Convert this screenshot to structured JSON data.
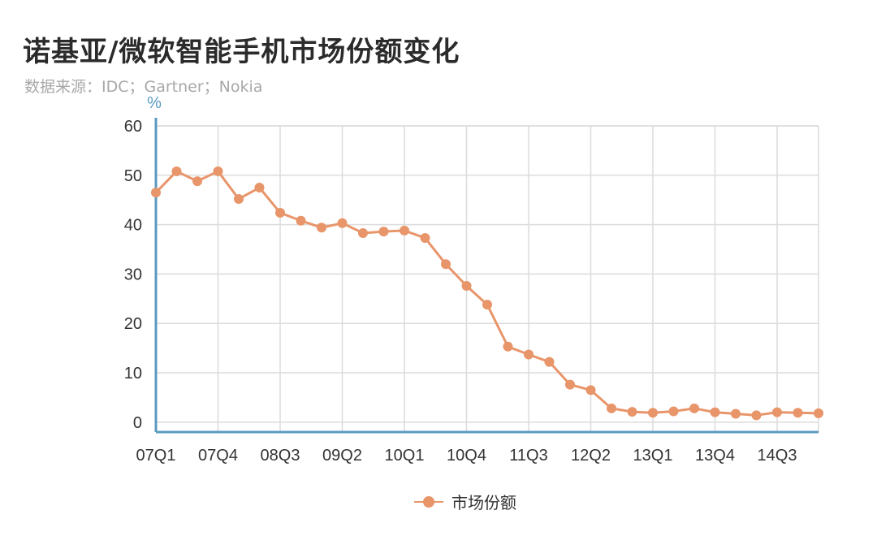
{
  "header": {
    "title": "诺基亚/微软智能手机市场份额变化",
    "subtitle": "数据来源：IDC；Gartner；Nokia"
  },
  "colors": {
    "series": "#e8956a",
    "axis": "#5b9ac1",
    "grid": "#dcdcdc"
  },
  "chart_data": {
    "type": "line",
    "title": "诺基亚/微软智能手机市场份额变化",
    "subtitle": "数据来源：IDC；Gartner；Nokia",
    "ylabel": "%",
    "xlabel": "",
    "ylim": [
      -2,
      60
    ],
    "yticks": [
      0,
      10,
      20,
      30,
      40,
      50,
      60
    ],
    "grid": true,
    "legend_position": "bottom",
    "x": [
      "07Q1",
      "07Q2",
      "07Q3",
      "07Q4",
      "08Q1",
      "08Q2",
      "08Q3",
      "08Q4",
      "09Q1",
      "09Q2",
      "09Q3",
      "09Q4",
      "10Q1",
      "10Q2",
      "10Q3",
      "10Q4",
      "11Q1",
      "11Q2",
      "11Q3",
      "11Q4",
      "12Q1",
      "12Q2",
      "12Q3",
      "12Q4",
      "13Q1",
      "13Q2",
      "13Q3",
      "13Q4",
      "14Q1",
      "14Q2",
      "14Q3",
      "14Q4",
      "15Q1"
    ],
    "xtick_labels": [
      "07Q1",
      "07Q4",
      "08Q3",
      "09Q2",
      "10Q1",
      "10Q4",
      "11Q3",
      "12Q2",
      "13Q1",
      "13Q4",
      "14Q3"
    ],
    "series": [
      {
        "name": "市场份额",
        "values": [
          46.5,
          50.8,
          48.8,
          50.8,
          45.2,
          47.5,
          42.4,
          40.8,
          39.4,
          40.3,
          38.3,
          38.6,
          38.8,
          37.3,
          32.0,
          27.6,
          23.8,
          15.3,
          13.7,
          12.2,
          7.6,
          6.5,
          2.8,
          2.1,
          1.9,
          2.2,
          2.8,
          2.0,
          1.7,
          1.4,
          2.0,
          1.9,
          1.8
        ]
      }
    ]
  }
}
